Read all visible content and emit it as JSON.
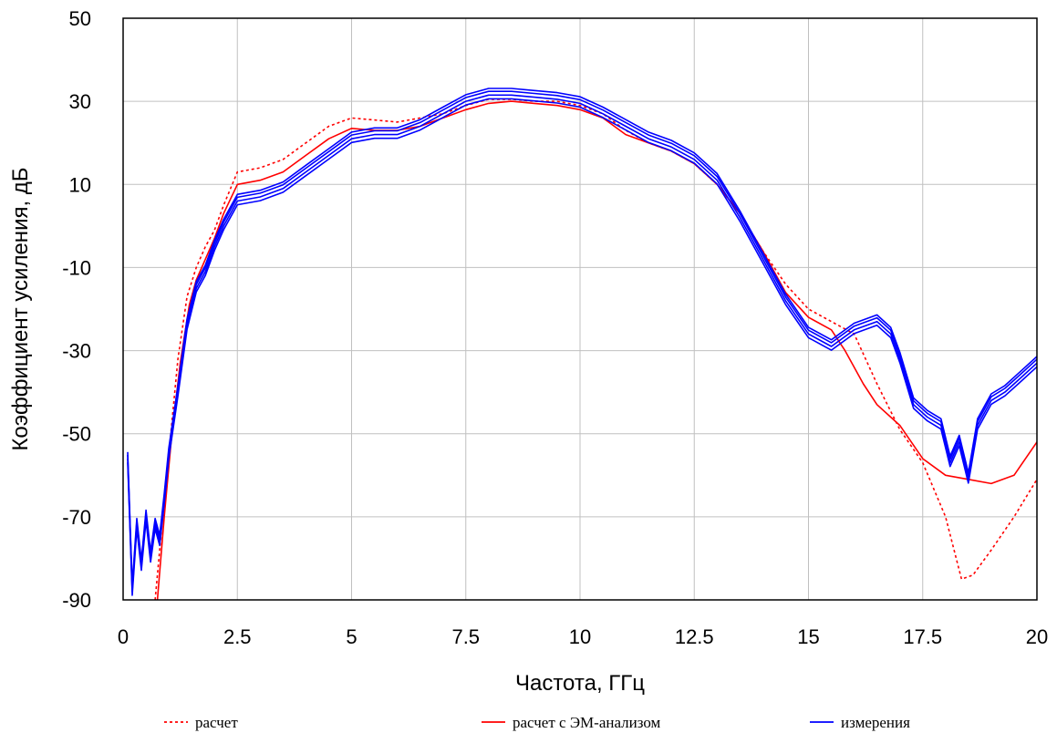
{
  "chart_data": {
    "type": "line",
    "xlabel": "Частота, ГГц",
    "ylabel": "Коэффициент усиления, дБ",
    "xlim": [
      0,
      20
    ],
    "ylim": [
      -90,
      50
    ],
    "x_ticks": [
      "0",
      "2.5",
      "5",
      "7.5",
      "10",
      "12.5",
      "15",
      "17.5",
      "20"
    ],
    "y_ticks": [
      "50",
      "30",
      "10",
      "-10",
      "-30",
      "-50",
      "-70",
      "-90"
    ],
    "grid": true,
    "legend_position": "bottom",
    "colors": {
      "calc": "#ff0000",
      "em": "#ff0000",
      "meas": "#0000ff"
    },
    "series": [
      {
        "name": "расчет",
        "style": "dotted",
        "color": "#ff0000",
        "points": [
          [
            0.7,
            -90
          ],
          [
            0.85,
            -72
          ],
          [
            1.0,
            -55
          ],
          [
            1.2,
            -32
          ],
          [
            1.4,
            -17
          ],
          [
            1.6,
            -10
          ],
          [
            1.8,
            -5
          ],
          [
            2.0,
            -1
          ],
          [
            2.2,
            5
          ],
          [
            2.5,
            13
          ],
          [
            3.0,
            14
          ],
          [
            3.5,
            16
          ],
          [
            4.0,
            20
          ],
          [
            4.5,
            24
          ],
          [
            5.0,
            26
          ],
          [
            5.5,
            25.5
          ],
          [
            6.0,
            25
          ],
          [
            6.5,
            26
          ],
          [
            7.0,
            27
          ],
          [
            7.5,
            29
          ],
          [
            8.0,
            30.5
          ],
          [
            8.5,
            30.5
          ],
          [
            9.0,
            30
          ],
          [
            9.5,
            30
          ],
          [
            10.0,
            29
          ],
          [
            10.5,
            27
          ],
          [
            11.0,
            23
          ],
          [
            11.5,
            20
          ],
          [
            12.0,
            18
          ],
          [
            12.5,
            15
          ],
          [
            13.0,
            10
          ],
          [
            13.5,
            3
          ],
          [
            14.0,
            -6
          ],
          [
            14.5,
            -14
          ],
          [
            15.0,
            -20
          ],
          [
            15.5,
            -23
          ],
          [
            16.0,
            -26
          ],
          [
            16.5,
            -38
          ],
          [
            17.0,
            -49
          ],
          [
            17.5,
            -57
          ],
          [
            18.0,
            -70
          ],
          [
            18.35,
            -85
          ],
          [
            18.6,
            -84
          ],
          [
            19.0,
            -78
          ],
          [
            19.5,
            -70
          ],
          [
            20.0,
            -61
          ]
        ]
      },
      {
        "name": "расчет с ЭМ-анализом",
        "style": "solid",
        "color": "#ff0000",
        "points": [
          [
            0.75,
            -90
          ],
          [
            0.9,
            -70
          ],
          [
            1.05,
            -52
          ],
          [
            1.25,
            -33
          ],
          [
            1.45,
            -19
          ],
          [
            1.6,
            -13
          ],
          [
            1.8,
            -8
          ],
          [
            2.0,
            -3
          ],
          [
            2.2,
            3
          ],
          [
            2.5,
            10
          ],
          [
            3.0,
            11
          ],
          [
            3.5,
            13
          ],
          [
            4.0,
            17
          ],
          [
            4.5,
            21
          ],
          [
            5.0,
            23.5
          ],
          [
            5.5,
            23
          ],
          [
            6.0,
            23
          ],
          [
            6.5,
            24
          ],
          [
            7.0,
            26
          ],
          [
            7.5,
            28
          ],
          [
            8.0,
            29.5
          ],
          [
            8.5,
            30
          ],
          [
            9.0,
            29.5
          ],
          [
            9.5,
            29
          ],
          [
            10.0,
            28
          ],
          [
            10.5,
            26
          ],
          [
            11.0,
            22
          ],
          [
            11.5,
            20
          ],
          [
            12.0,
            18
          ],
          [
            12.5,
            15
          ],
          [
            13.0,
            10
          ],
          [
            13.5,
            3
          ],
          [
            14.0,
            -6
          ],
          [
            14.5,
            -16
          ],
          [
            15.0,
            -22
          ],
          [
            15.5,
            -25
          ],
          [
            15.8,
            -30
          ],
          [
            16.2,
            -38
          ],
          [
            16.5,
            -43
          ],
          [
            17.0,
            -48
          ],
          [
            17.5,
            -56
          ],
          [
            18.0,
            -60
          ],
          [
            18.5,
            -61
          ],
          [
            19.0,
            -62
          ],
          [
            19.5,
            -60
          ],
          [
            20.0,
            -52
          ]
        ]
      },
      {
        "name": "измерения",
        "style": "solid",
        "color": "#0000ff",
        "points": [
          [
            0.1,
            -56
          ],
          [
            0.2,
            -88
          ],
          [
            0.3,
            -72
          ],
          [
            0.4,
            -82
          ],
          [
            0.5,
            -70
          ],
          [
            0.6,
            -80
          ],
          [
            0.7,
            -72
          ],
          [
            0.8,
            -76
          ],
          [
            0.9,
            -66
          ],
          [
            1.0,
            -55
          ],
          [
            1.2,
            -40
          ],
          [
            1.4,
            -24
          ],
          [
            1.6,
            -15
          ],
          [
            1.8,
            -11
          ],
          [
            2.0,
            -5
          ],
          [
            2.2,
            0
          ],
          [
            2.5,
            6
          ],
          [
            3.0,
            7
          ],
          [
            3.5,
            9
          ],
          [
            4.0,
            13
          ],
          [
            4.5,
            17
          ],
          [
            5.0,
            21
          ],
          [
            5.5,
            22
          ],
          [
            6.0,
            22
          ],
          [
            6.5,
            24
          ],
          [
            7.0,
            27
          ],
          [
            7.5,
            30
          ],
          [
            8.0,
            31.5
          ],
          [
            8.5,
            31.5
          ],
          [
            9.0,
            31
          ],
          [
            9.5,
            30.5
          ],
          [
            10.0,
            29.5
          ],
          [
            10.5,
            27
          ],
          [
            11.0,
            24
          ],
          [
            11.5,
            21
          ],
          [
            12.0,
            19
          ],
          [
            12.5,
            16
          ],
          [
            13.0,
            11
          ],
          [
            13.5,
            2
          ],
          [
            14.0,
            -8
          ],
          [
            14.5,
            -18
          ],
          [
            15.0,
            -26
          ],
          [
            15.5,
            -29
          ],
          [
            16.0,
            -25
          ],
          [
            16.5,
            -23
          ],
          [
            16.8,
            -26
          ],
          [
            17.0,
            -32
          ],
          [
            17.3,
            -43
          ],
          [
            17.6,
            -46
          ],
          [
            17.9,
            -48
          ],
          [
            18.1,
            -57
          ],
          [
            18.3,
            -52
          ],
          [
            18.5,
            -61
          ],
          [
            18.7,
            -48
          ],
          [
            19.0,
            -42
          ],
          [
            19.3,
            -40
          ],
          [
            19.6,
            -37
          ],
          [
            20.0,
            -33
          ]
        ]
      }
    ]
  }
}
